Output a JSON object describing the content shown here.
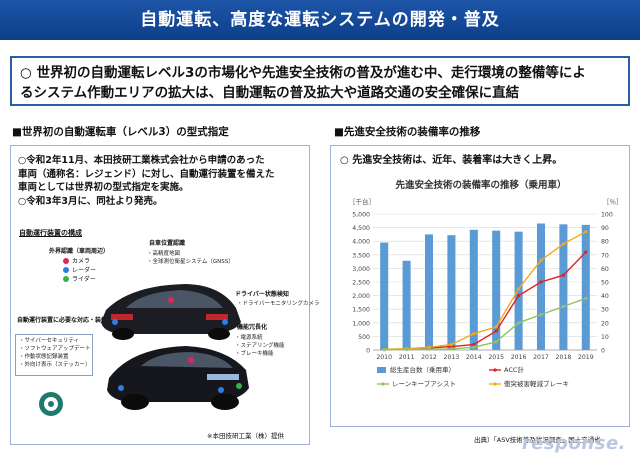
{
  "title": "自動運転、高度な運転システムの開発・普及",
  "summary": {
    "line1": "○ 世界初の自動運転レベル3の市場化や先進安全技術の普及が進む中、走行環境の整備等によ",
    "line2": "るシステム作動エリアの拡大は、自動運転の普及拡大や道路交通の安全確保に直結"
  },
  "left": {
    "heading": "■世界初の自動運転車（レベル3）の型式指定",
    "para1": [
      "○令和2年11月、本田技研工業株式会社から申請のあった",
      "車両（通称名：レジェンド）に対し、自動運行装置を備えた",
      "車両としては世界初の型式指定を実施。",
      "○令和3年3月に、同社より発売。"
    ],
    "device_heading": "自動運行装置の構成",
    "external_title": "外界認識（車両周辺）",
    "external_items": [
      "カメラ",
      "レーダー",
      "ライダー"
    ],
    "position_title": "自車位置認識",
    "position_items": [
      "・高精度地図",
      "・全球測位衛星システム（GNSS）"
    ],
    "driver_title": "ドライバー状態検知",
    "driver_items": [
      "・ドライバーモニタリングカメラ"
    ],
    "redundancy_title": "機能冗長化",
    "redundancy_items": [
      "・電源系統",
      "・ステアリング機能",
      "・ブレーキ機能"
    ],
    "required_title": "自動運行装置に必要な対応・装備",
    "required_items": [
      "・サイバーセキュリティ",
      "・ソフトウェアアップデート",
      "・作動状態記録装置",
      "・外向け表示（ステッカー）"
    ],
    "credit": "※本田技研工業（株）提供"
  },
  "right": {
    "heading": "■先進安全技術の装備率の推移",
    "para": "○ 先進安全技術は、近年、装着率は大きく上昇。",
    "source": "出典）「ASV技術普及状況調査」国土交通省"
  },
  "colors": {
    "title_bg": "#1d55a8",
    "border": "#2a5ca8",
    "bar": "#5b9bd5",
    "acc": "#e32020",
    "aeb": "#f5a81c",
    "lka": "#8fc460"
  },
  "chart_data": {
    "type": "bar",
    "title": "先進安全技術の装備率の推移（乗用車）",
    "left_unit": "［千台］",
    "right_unit": "［％］",
    "categories": [
      "2010",
      "2011",
      "2012",
      "2013",
      "2014",
      "2015",
      "2016",
      "2017",
      "2018",
      "2019"
    ],
    "ylim": [
      0,
      5000
    ],
    "y_ticks": [
      "0",
      "500",
      "1,000",
      "1,500",
      "2,000",
      "2,500",
      "3,000",
      "3,500",
      "4,000",
      "4,500",
      "5,000"
    ],
    "y2lim": [
      0,
      100
    ],
    "y2_ticks": [
      "0",
      "10",
      "20",
      "30",
      "40",
      "50",
      "60",
      "70",
      "80",
      "90",
      "100"
    ],
    "bars": {
      "name": "総生産台数（乗用車）",
      "values": [
        3950,
        3280,
        4250,
        4220,
        4420,
        4390,
        4350,
        4650,
        4620,
        4600
      ]
    },
    "lines": [
      {
        "name": "ACC計",
        "key": "acc",
        "values": [
          0.5,
          0.8,
          1.5,
          2.5,
          4.0,
          14.0,
          40.0,
          50.0,
          55.0,
          72.0
        ]
      },
      {
        "name": "衝突被害軽減ブレーキ",
        "key": "aeb",
        "values": [
          0.5,
          1.0,
          2.0,
          4.0,
          12.0,
          17.0,
          45.0,
          66.0,
          78.0,
          87.0
        ]
      },
      {
        "name": "レーンキープアシスト",
        "key": "lka",
        "values": [
          0.2,
          0.4,
          0.6,
          0.8,
          2.0,
          6.0,
          20.0,
          26.0,
          32.0,
          38.0
        ]
      }
    ],
    "grid": true,
    "legend_position": "bottom"
  },
  "watermark": "response."
}
